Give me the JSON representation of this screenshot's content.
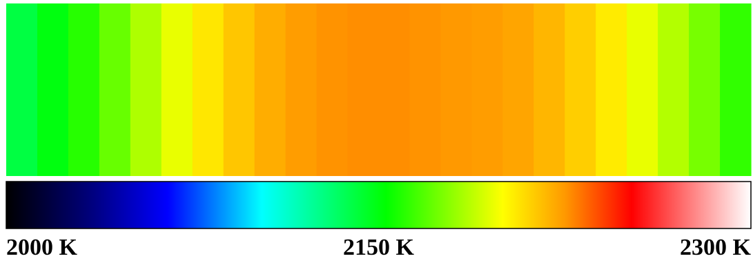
{
  "chart_data": {
    "type": "heatmap",
    "values": [
      2140,
      2150,
      2160,
      2172,
      2185,
      2196,
      2206,
      2214,
      2220,
      2224,
      2226,
      2227,
      2227,
      2226,
      2225,
      2224,
      2222,
      2218,
      2212,
      2205,
      2196,
      2186,
      2175,
      2162
    ],
    "clim": [
      2000,
      2300
    ],
    "cticks": [
      {
        "value": 2000,
        "label": "2000 K"
      },
      {
        "value": 2150,
        "label": "2150 K"
      },
      {
        "value": 2300,
        "label": "2300 K"
      }
    ],
    "colormap": [
      {
        "value": 2000,
        "color": "#000000"
      },
      {
        "value": 2035,
        "color": "#000080"
      },
      {
        "value": 2065,
        "color": "#0000ff"
      },
      {
        "value": 2103,
        "color": "#00ffff"
      },
      {
        "value": 2153,
        "color": "#00ff00"
      },
      {
        "value": 2200,
        "color": "#ffff00"
      },
      {
        "value": 2225,
        "color": "#ff9900"
      },
      {
        "value": 2252,
        "color": "#ff0000"
      },
      {
        "value": 2300,
        "color": "#ffffff"
      }
    ]
  }
}
